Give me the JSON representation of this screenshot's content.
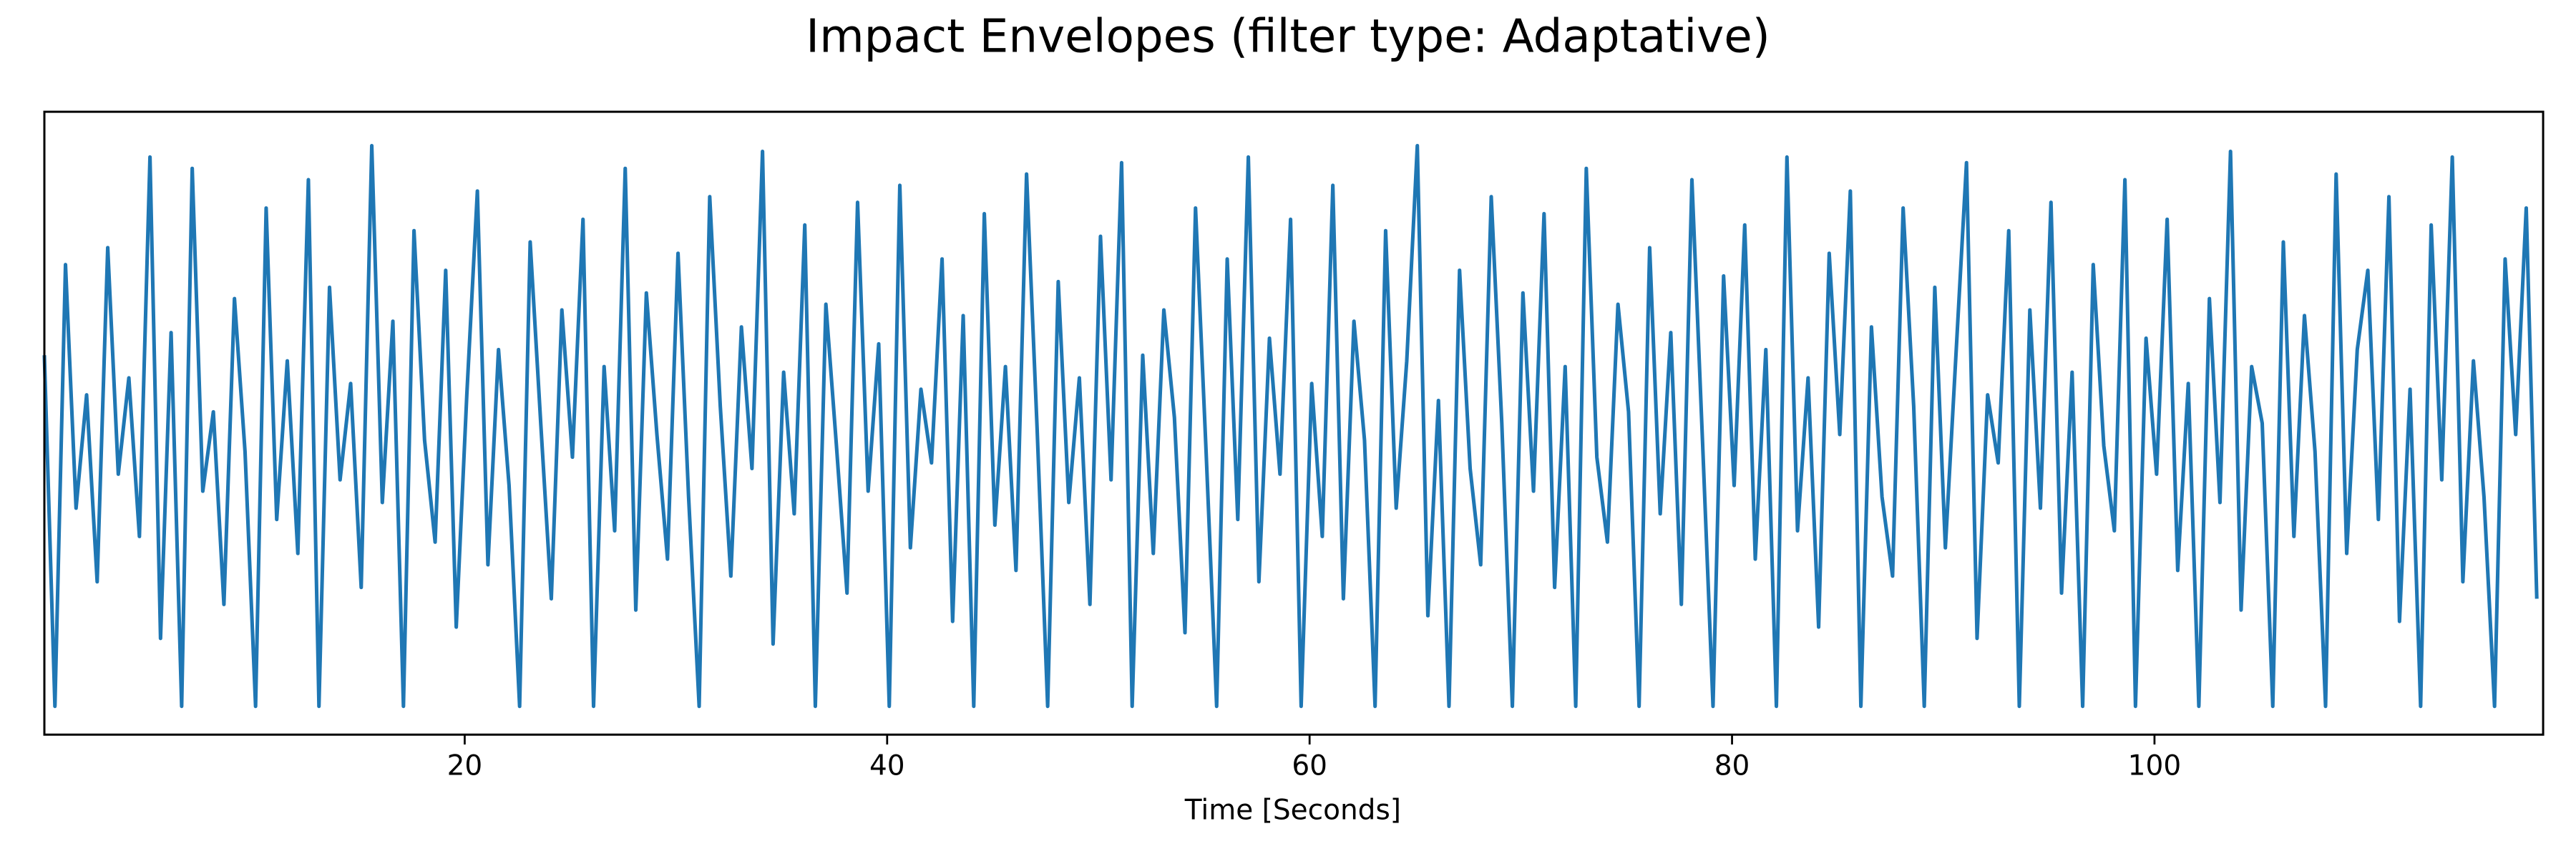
{
  "chart_data": {
    "type": "line",
    "title": "Impact Envelopes (filter type: Adaptative)",
    "xlabel": "Time [Seconds]",
    "color": "#1f77b4",
    "xlim": [
      0.1,
      118.4
    ],
    "ylim": [
      -0.05,
      1.05
    ],
    "xticks": [
      20,
      40,
      60,
      80,
      100
    ],
    "x": [
      0.1,
      0.6,
      1.1,
      1.6,
      2.1,
      2.6,
      3.1,
      3.6,
      4.1,
      4.6,
      5.1,
      5.6,
      6.1,
      6.6,
      7.1,
      7.6,
      8.1,
      8.6,
      9.1,
      9.6,
      10.1,
      10.6,
      11.1,
      11.6,
      12.1,
      12.6,
      13.1,
      13.6,
      14.1,
      14.6,
      15.1,
      15.6,
      16.1,
      16.6,
      17.1,
      17.6,
      18.1,
      18.6,
      19.1,
      19.6,
      20.1,
      20.6,
      21.1,
      21.6,
      22.1,
      22.6,
      23.1,
      23.6,
      24.1,
      24.6,
      25.1,
      25.6,
      26.1,
      26.6,
      27.1,
      27.6,
      28.1,
      28.6,
      29.1,
      29.6,
      30.1,
      30.6,
      31.1,
      31.6,
      32.1,
      32.6,
      33.1,
      33.6,
      34.1,
      34.6,
      35.1,
      35.6,
      36.1,
      36.6,
      37.1,
      37.6,
      38.1,
      38.6,
      39.1,
      39.6,
      40.1,
      40.6,
      41.1,
      41.6,
      42.1,
      42.6,
      43.1,
      43.6,
      44.1,
      44.6,
      45.1,
      45.6,
      46.1,
      46.6,
      47.1,
      47.6,
      48.1,
      48.6,
      49.1,
      49.6,
      50.1,
      50.6,
      51.1,
      51.6,
      52.1,
      52.6,
      53.1,
      53.6,
      54.1,
      54.6,
      55.1,
      55.6,
      56.1,
      56.6,
      57.1,
      57.6,
      58.1,
      58.6,
      59.1,
      59.6,
      60.1,
      60.6,
      61.1,
      61.6,
      62.1,
      62.6,
      63.1,
      63.6,
      64.1,
      64.6,
      65.1,
      65.6,
      66.1,
      66.6,
      67.1,
      67.6,
      68.1,
      68.6,
      69.1,
      69.6,
      70.1,
      70.6,
      71.1,
      71.6,
      72.1,
      72.6,
      73.1,
      73.6,
      74.1,
      74.6,
      75.1,
      75.6,
      76.1,
      76.6,
      77.1,
      77.6,
      78.1,
      78.6,
      79.1,
      79.6,
      80.1,
      80.6,
      81.1,
      81.6,
      82.1,
      82.6,
      83.1,
      83.6,
      84.1,
      84.6,
      85.1,
      85.6,
      86.1,
      86.6,
      87.1,
      87.6,
      88.1,
      88.6,
      89.1,
      89.6,
      90.1,
      90.6,
      91.1,
      91.6,
      92.1,
      92.6,
      93.1,
      93.6,
      94.1,
      94.6,
      95.1,
      95.6,
      96.1,
      96.6,
      97.1,
      97.6,
      98.1,
      98.6,
      99.1,
      99.6,
      100.1,
      100.6,
      101.1,
      101.6,
      102.1,
      102.6,
      103.1,
      103.6,
      104.1,
      104.6,
      105.1,
      105.6,
      106.1,
      106.6,
      107.1,
      107.6,
      108.1,
      108.6,
      109.1,
      109.6,
      110.1,
      110.6,
      111.1,
      111.6,
      112.1,
      112.6,
      113.1,
      113.6,
      114.1,
      114.6,
      115.1,
      115.6,
      116.1,
      116.6,
      117.1,
      117.6,
      118.1
    ],
    "values": [
      0.62,
      0.0,
      0.78,
      0.35,
      0.55,
      0.22,
      0.81,
      0.41,
      0.58,
      0.3,
      0.97,
      0.12,
      0.66,
      0.0,
      0.95,
      0.38,
      0.52,
      0.18,
      0.72,
      0.45,
      0.0,
      0.88,
      0.33,
      0.61,
      0.27,
      0.93,
      0.0,
      0.74,
      0.4,
      0.57,
      0.21,
      0.99,
      0.36,
      0.68,
      0.0,
      0.84,
      0.47,
      0.29,
      0.77,
      0.14,
      0.55,
      0.91,
      0.25,
      0.63,
      0.39,
      0.0,
      0.82,
      0.5,
      0.19,
      0.7,
      0.44,
      0.86,
      0.0,
      0.6,
      0.31,
      0.95,
      0.17,
      0.73,
      0.48,
      0.26,
      0.8,
      0.37,
      0.0,
      0.9,
      0.53,
      0.23,
      0.67,
      0.42,
      0.98,
      0.11,
      0.59,
      0.34,
      0.85,
      0.0,
      0.71,
      0.46,
      0.2,
      0.89,
      0.38,
      0.64,
      0.0,
      0.92,
      0.28,
      0.56,
      0.43,
      0.79,
      0.15,
      0.69,
      0.0,
      0.87,
      0.32,
      0.6,
      0.24,
      0.94,
      0.49,
      0.0,
      0.75,
      0.36,
      0.58,
      0.18,
      0.83,
      0.4,
      0.96,
      0.0,
      0.62,
      0.27,
      0.7,
      0.51,
      0.13,
      0.88,
      0.45,
      0.0,
      0.79,
      0.33,
      0.97,
      0.22,
      0.65,
      0.41,
      0.86,
      0.0,
      0.57,
      0.3,
      0.92,
      0.19,
      0.68,
      0.47,
      0.0,
      0.84,
      0.35,
      0.61,
      0.99,
      0.16,
      0.54,
      0.0,
      0.77,
      0.42,
      0.25,
      0.9,
      0.5,
      0.0,
      0.73,
      0.38,
      0.87,
      0.21,
      0.6,
      0.0,
      0.95,
      0.44,
      0.29,
      0.71,
      0.52,
      0.0,
      0.81,
      0.34,
      0.66,
      0.18,
      0.93,
      0.47,
      0.0,
      0.76,
      0.39,
      0.85,
      0.26,
      0.63,
      0.0,
      0.97,
      0.31,
      0.58,
      0.14,
      0.8,
      0.48,
      0.91,
      0.0,
      0.67,
      0.37,
      0.23,
      0.88,
      0.53,
      0.0,
      0.74,
      0.28,
      0.62,
      0.96,
      0.12,
      0.55,
      0.43,
      0.84,
      0.0,
      0.7,
      0.35,
      0.89,
      0.2,
      0.59,
      0.0,
      0.78,
      0.46,
      0.31,
      0.93,
      0.0,
      0.65,
      0.41,
      0.86,
      0.24,
      0.57,
      0.0,
      0.72,
      0.36,
      0.98,
      0.17,
      0.6,
      0.5,
      0.0,
      0.82,
      0.3,
      0.69,
      0.45,
      0.0,
      0.94,
      0.27,
      0.63,
      0.77,
      0.33,
      0.9,
      0.15,
      0.56,
      0.0,
      0.85,
      0.4,
      0.97,
      0.22,
      0.61,
      0.37,
      0.0,
      0.79,
      0.48,
      0.88,
      0.19
    ]
  }
}
